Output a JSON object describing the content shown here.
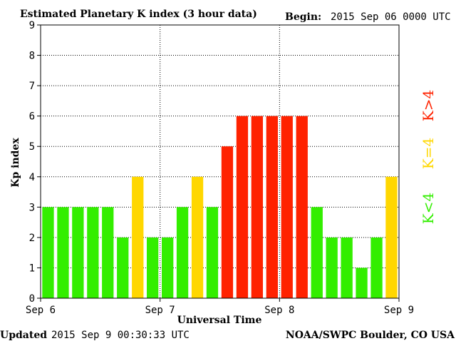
{
  "header": {
    "title": "Estimated Planetary K index (3 hour data)",
    "begin_label": "Begin:",
    "begin_value": "2015 Sep 06 0000 UTC"
  },
  "footer": {
    "updated_label": "Updated",
    "updated_value": "2015 Sep  9 00:30:33 UTC",
    "source": "NOAA/SWPC Boulder, CO USA"
  },
  "legend": {
    "low": "K<4",
    "mid": "K=4",
    "high": "K>4"
  },
  "colors": {
    "low": "#33ee00",
    "mid": "#ffd700",
    "high": "#ff2200",
    "grid": "#000000",
    "background": "#ffffff"
  },
  "chart_data": {
    "type": "bar",
    "title": "Estimated Planetary K index (3 hour data)",
    "xlabel": "Universal Time",
    "ylabel": "Kp index",
    "ylim": [
      0,
      9
    ],
    "yticks": [
      "0",
      "1",
      "2",
      "3",
      "4",
      "5",
      "6",
      "7",
      "8",
      "9"
    ],
    "xticks": [
      "Sep 6",
      "Sep 7",
      "Sep 8",
      "Sep 9"
    ],
    "grid": true,
    "interval_hours": 3,
    "values": [
      3,
      3,
      3,
      3,
      3,
      2,
      4,
      2,
      2,
      3,
      4,
      3,
      5,
      6,
      6,
      6,
      6,
      6,
      3,
      2,
      2,
      1,
      2,
      4
    ]
  }
}
